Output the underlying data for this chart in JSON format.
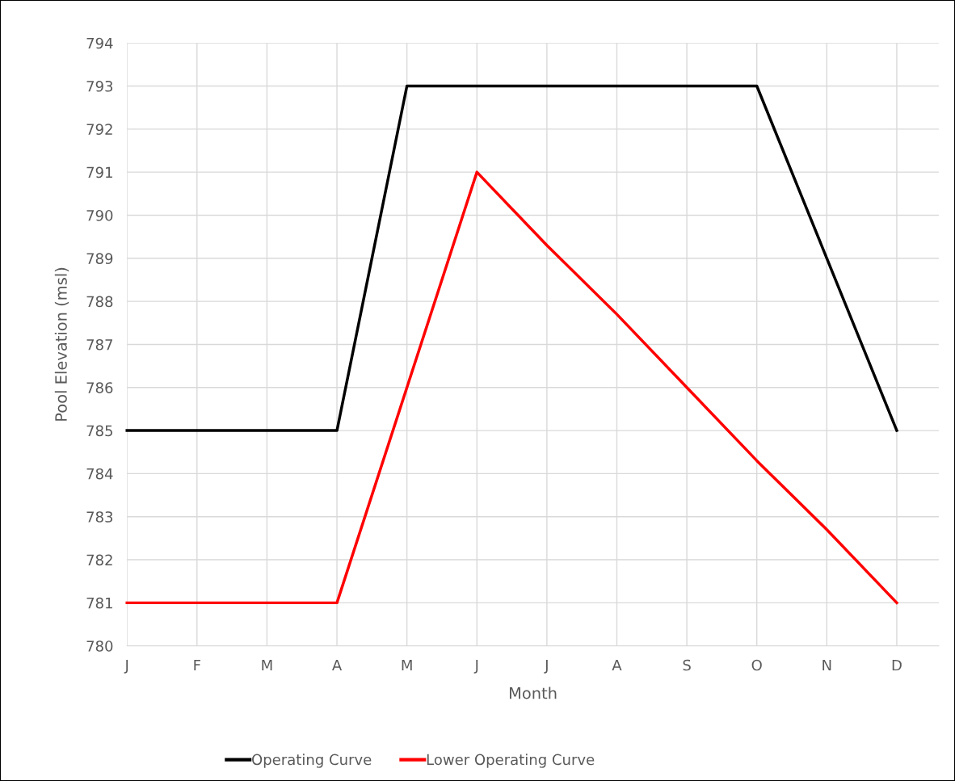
{
  "chart_data": {
    "type": "line",
    "xlabel": "Month",
    "ylabel": "Pool Elevation (msl)",
    "categories": [
      "J",
      "F",
      "M",
      "A",
      "M",
      "J",
      "J",
      "A",
      "S",
      "O",
      "N",
      "D"
    ],
    "series": [
      {
        "name": "Operating Curve",
        "color": "#000000",
        "values": [
          785,
          785,
          785,
          785,
          793,
          793,
          793,
          793,
          793,
          793,
          789,
          785
        ]
      },
      {
        "name": "Lower Operating Curve",
        "color": "#ff0000",
        "values": [
          781,
          781,
          781,
          781,
          786,
          791,
          789.3,
          787.7,
          786,
          784.3,
          782.7,
          781
        ]
      }
    ],
    "ylim": [
      780,
      794
    ],
    "yticks": [
      780,
      781,
      782,
      783,
      784,
      785,
      786,
      787,
      788,
      789,
      790,
      791,
      792,
      793,
      794
    ],
    "grid": true,
    "legend": "bottom",
    "marker": "none",
    "line_style": "solid"
  }
}
